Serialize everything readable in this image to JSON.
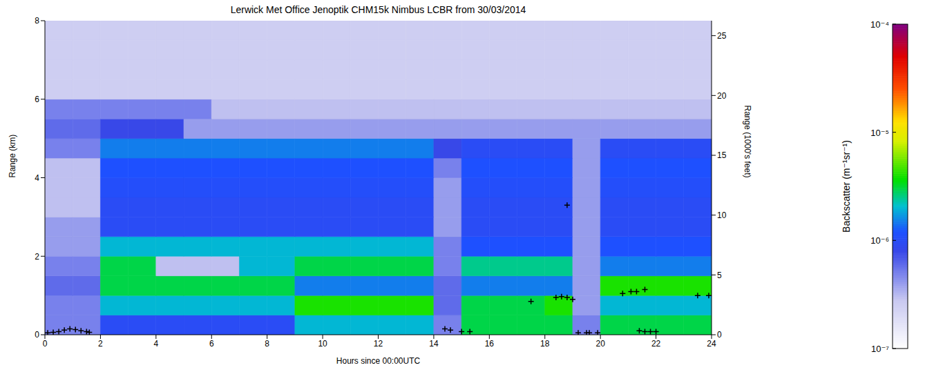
{
  "chart_data": {
    "type": "heatmap",
    "title": "Lerwick Met Office Jenoptik CHM15k Nimbus LCBR from 30/03/2014",
    "xlabel": "Hours since 00:00UTC",
    "ylabel": "Range (km)",
    "y2label": "Range (1000's feet)",
    "xlim": [
      0,
      24
    ],
    "xticks": [
      0,
      2,
      4,
      6,
      8,
      10,
      12,
      14,
      16,
      18,
      20,
      22,
      24
    ],
    "ylim": [
      0,
      8
    ],
    "yticks": [
      0,
      2,
      4,
      6,
      8
    ],
    "y2lim": [
      0,
      26.25
    ],
    "y2ticks": [
      0,
      5,
      10,
      15,
      20,
      25
    ],
    "x_bins": [
      0,
      1,
      2,
      3,
      4,
      5,
      6,
      7,
      8,
      9,
      10,
      11,
      12,
      13,
      14,
      15,
      16,
      17,
      18,
      19,
      20,
      21,
      22,
      23,
      24
    ],
    "y_bins": [
      0,
      0.5,
      1,
      1.5,
      2,
      2.5,
      3,
      3.5,
      4,
      4.5,
      5,
      5.5,
      6,
      6.5,
      7,
      7.5,
      8
    ],
    "cells": [
      [
        5e-07,
        5e-07,
        1e-06,
        1e-06,
        1e-06,
        1e-06,
        1e-06,
        1e-06,
        1e-06,
        2e-06,
        2e-06,
        2e-06,
        2e-06,
        2e-06,
        5e-07,
        3e-06,
        3e-06,
        3e-06,
        3e-06,
        5e-07,
        3e-06,
        3e-06,
        3e-06,
        3e-06
      ],
      [
        5e-07,
        5e-07,
        2e-06,
        2e-06,
        2e-06,
        2e-06,
        2e-06,
        2e-06,
        2e-06,
        4e-06,
        4e-06,
        4e-06,
        4e-06,
        4e-06,
        6e-07,
        3e-06,
        3e-06,
        3e-06,
        4e-06,
        4e-07,
        2e-06,
        2e-06,
        2e-06,
        2e-06
      ],
      [
        6e-07,
        6e-07,
        3e-06,
        3e-06,
        3e-06,
        3e-06,
        3e-06,
        3e-06,
        3e-06,
        1.5e-06,
        1.5e-06,
        1.5e-06,
        1.5e-06,
        1.5e-06,
        6e-07,
        1.5e-06,
        1.5e-06,
        1.5e-06,
        1.5e-06,
        4e-07,
        4e-06,
        4e-06,
        4e-06,
        4e-06
      ],
      [
        5e-07,
        5e-07,
        3e-06,
        3e-06,
        3e-07,
        3e-07,
        3e-07,
        2e-06,
        2e-06,
        3e-06,
        3e-06,
        3e-06,
        3e-06,
        3e-06,
        5e-07,
        2.5e-06,
        2.5e-06,
        2.5e-06,
        2.5e-06,
        4e-07,
        1.5e-06,
        1.5e-06,
        1.5e-06,
        1.5e-06
      ],
      [
        4e-07,
        4e-07,
        2e-06,
        2e-06,
        2e-06,
        2e-06,
        2e-06,
        2e-06,
        2e-06,
        2e-06,
        2e-06,
        2e-06,
        2e-06,
        2e-06,
        5e-07,
        1.2e-06,
        1.2e-06,
        1.2e-06,
        1.2e-06,
        4e-07,
        1.2e-06,
        1.2e-06,
        1.2e-06,
        1.2e-06
      ],
      [
        4e-07,
        4e-07,
        1e-06,
        1e-06,
        1e-06,
        1e-06,
        1e-06,
        1e-06,
        1e-06,
        1e-06,
        1e-06,
        1e-06,
        1e-06,
        1e-06,
        4e-07,
        1e-06,
        1e-06,
        1e-06,
        1e-06,
        4e-07,
        1e-06,
        1e-06,
        1e-06,
        1e-06
      ],
      [
        3e-07,
        3e-07,
        1e-06,
        1e-06,
        1e-06,
        1e-06,
        1e-06,
        1e-06,
        1e-06,
        1e-06,
        1e-06,
        1e-06,
        1e-06,
        1e-06,
        4e-07,
        1e-06,
        1e-06,
        1e-06,
        1e-06,
        4e-07,
        1e-06,
        1e-06,
        1e-06,
        1e-06
      ],
      [
        3e-07,
        3e-07,
        1.1e-06,
        1.1e-06,
        1.1e-06,
        1.1e-06,
        1.1e-06,
        1.1e-06,
        1.1e-06,
        1.1e-06,
        1.1e-06,
        1.1e-06,
        1.1e-06,
        1.1e-06,
        4e-07,
        1.1e-06,
        1.1e-06,
        1.1e-06,
        1.1e-06,
        4e-07,
        1.1e-06,
        1.1e-06,
        1.1e-06,
        1.1e-06
      ],
      [
        3e-07,
        3e-07,
        1.2e-06,
        1.2e-06,
        1.2e-06,
        1.2e-06,
        1.2e-06,
        1.2e-06,
        1.2e-06,
        1.2e-06,
        1.2e-06,
        1.2e-06,
        1.2e-06,
        1.2e-06,
        5e-07,
        1.2e-06,
        1.2e-06,
        1.2e-06,
        1.2e-06,
        4e-07,
        1.2e-06,
        1.2e-06,
        1.2e-06,
        1.2e-06
      ],
      [
        5e-07,
        5e-07,
        1.5e-06,
        1.5e-06,
        1.5e-06,
        1.5e-06,
        1.5e-06,
        1.5e-06,
        1.5e-06,
        1.5e-06,
        1.5e-06,
        1.5e-06,
        1.5e-06,
        1.5e-06,
        8e-07,
        1e-06,
        1e-06,
        1e-06,
        1e-06,
        4e-07,
        1e-06,
        1e-06,
        1e-06,
        1e-06
      ],
      [
        6e-07,
        6e-07,
        8e-07,
        8e-07,
        8e-07,
        4e-07,
        4e-07,
        4e-07,
        4e-07,
        4e-07,
        4e-07,
        4e-07,
        4e-07,
        4e-07,
        4e-07,
        4e-07,
        4e-07,
        4e-07,
        4e-07,
        4e-07,
        4e-07,
        4e-07,
        4e-07,
        4e-07
      ],
      [
        5e-07,
        5e-07,
        5e-07,
        5e-07,
        5e-07,
        5e-07,
        3e-07,
        3e-07,
        3e-07,
        3e-07,
        3e-07,
        3e-07,
        3e-07,
        3e-07,
        3e-07,
        3e-07,
        3e-07,
        3e-07,
        3e-07,
        3e-07,
        3e-07,
        3e-07,
        3e-07,
        3e-07
      ],
      [
        2.5e-07,
        2.5e-07,
        2.5e-07,
        2.5e-07,
        2.5e-07,
        2.5e-07,
        2.5e-07,
        2.5e-07,
        2.5e-07,
        2.5e-07,
        2.5e-07,
        2.5e-07,
        2.5e-07,
        2.5e-07,
        2.5e-07,
        2.5e-07,
        2.5e-07,
        2.5e-07,
        2.5e-07,
        2.5e-07,
        2.5e-07,
        2.5e-07,
        2.5e-07,
        2.5e-07
      ],
      [
        2.5e-07,
        2.5e-07,
        2.5e-07,
        2.5e-07,
        2.5e-07,
        2.5e-07,
        2.5e-07,
        2.5e-07,
        2.5e-07,
        2.5e-07,
        2.5e-07,
        2.5e-07,
        2.5e-07,
        2.5e-07,
        2.5e-07,
        2.5e-07,
        2.5e-07,
        2.5e-07,
        2.5e-07,
        2.5e-07,
        2.5e-07,
        2.5e-07,
        2.5e-07,
        2.5e-07
      ],
      [
        2.5e-07,
        2.5e-07,
        2.5e-07,
        2.5e-07,
        2.5e-07,
        2.5e-07,
        2.5e-07,
        2.5e-07,
        2.5e-07,
        2.5e-07,
        2.5e-07,
        2.5e-07,
        2.5e-07,
        2.5e-07,
        2.5e-07,
        2.5e-07,
        2.5e-07,
        2.5e-07,
        2.5e-07,
        2.5e-07,
        2.5e-07,
        2.5e-07,
        2.5e-07,
        2.5e-07
      ],
      [
        2.5e-07,
        2.5e-07,
        2.5e-07,
        2.5e-07,
        2.5e-07,
        2.5e-07,
        2.5e-07,
        2.5e-07,
        2.5e-07,
        2.5e-07,
        2.5e-07,
        2.5e-07,
        2.5e-07,
        2.5e-07,
        2.5e-07,
        2.5e-07,
        2.5e-07,
        2.5e-07,
        2.5e-07,
        2.5e-07,
        2.5e-07,
        2.5e-07,
        2.5e-07,
        2.5e-07
      ]
    ],
    "color_label": "Backscatter (m⁻¹sr⁻¹)",
    "color_range": [
      1e-07,
      0.0001
    ],
    "color_ticks": [
      {
        "value": 1e-07,
        "label": "10⁻⁷"
      },
      {
        "value": 1e-06,
        "label": "10⁻⁶"
      },
      {
        "value": 1e-05,
        "label": "10⁻⁵"
      },
      {
        "value": 0.0001,
        "label": "10⁻⁴"
      }
    ],
    "markers": {
      "marker": "plus",
      "color": "#000000",
      "x": [
        0.1,
        0.3,
        0.5,
        0.7,
        0.9,
        1.1,
        1.3,
        1.5,
        1.6,
        14.4,
        14.6,
        15.0,
        15.3,
        17.5,
        18.4,
        18.6,
        18.8,
        19.0,
        18.8,
        19.2,
        19.5,
        19.6,
        19.9,
        20.8,
        21.1,
        21.3,
        21.6,
        21.4,
        21.6,
        21.8,
        22.0,
        23.5,
        23.9
      ],
      "y": [
        0.05,
        0.06,
        0.08,
        0.12,
        0.15,
        0.13,
        0.1,
        0.08,
        0.06,
        0.15,
        0.12,
        0.08,
        0.08,
        0.85,
        0.95,
        0.97,
        0.95,
        0.9,
        3.3,
        0.05,
        0.05,
        0.05,
        0.05,
        1.05,
        1.1,
        1.1,
        1.15,
        0.1,
        0.08,
        0.08,
        0.08,
        1.0,
        1.0
      ]
    }
  }
}
